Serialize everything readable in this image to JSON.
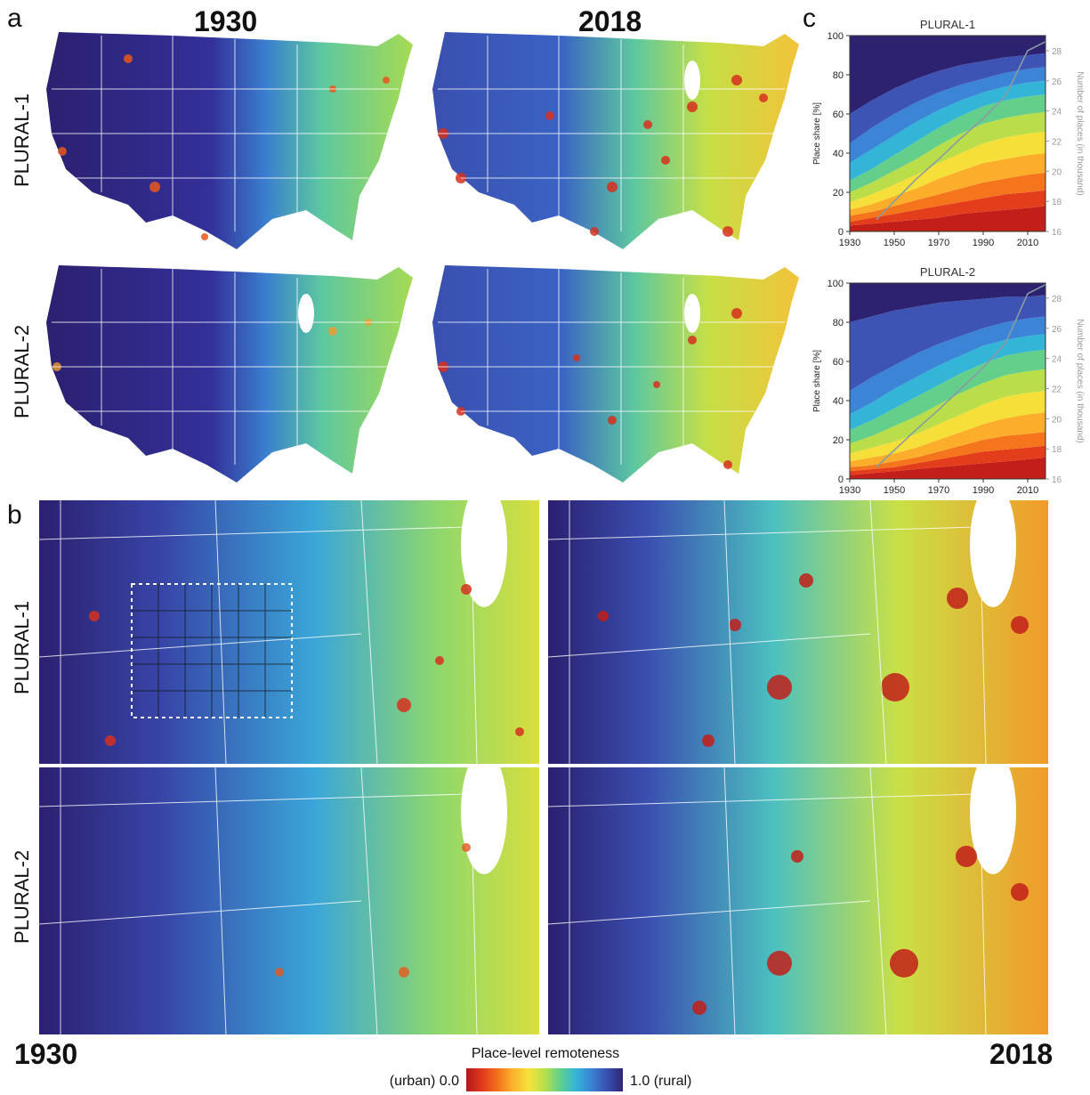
{
  "panel_labels": {
    "a": "a",
    "b": "b",
    "c": "c"
  },
  "map_headers": {
    "left_year": "1930",
    "right_year": "2018"
  },
  "row_labels": {
    "a_top": "PLURAL-1",
    "a_bottom": "PLURAL-2",
    "b_top": "PLURAL-1",
    "b_bottom": "PLURAL-2"
  },
  "bottom_years": {
    "left": "1930",
    "right": "2018"
  },
  "colorbar": {
    "title": "Place-level remoteness",
    "left_label": "(urban) 0.0",
    "right_label": "1.0 (rural)",
    "colors": [
      "#b2181b",
      "#e2391c",
      "#f2711c",
      "#fbb42d",
      "#f4e33b",
      "#b6e04a",
      "#5fd08c",
      "#33b6d8",
      "#3a82d4",
      "#3a4fb0",
      "#2e2576"
    ]
  },
  "chart_data": [
    {
      "type": "area",
      "title": "PLURAL-1",
      "ylabel": "Place share [%]",
      "y2label": "Number of places (in thousand)",
      "xlim": [
        1930,
        2018
      ],
      "ylim": [
        0,
        100
      ],
      "y2lim": [
        16,
        29
      ],
      "xticks": [
        1930,
        1950,
        1970,
        1990,
        2010
      ],
      "yticks": [
        0,
        20,
        40,
        60,
        80,
        100
      ],
      "y2ticks": [
        16,
        18,
        20,
        22,
        24,
        26,
        28
      ],
      "x": [
        1930,
        1940,
        1950,
        1960,
        1970,
        1980,
        1990,
        2000,
        2010,
        2018
      ],
      "band_colors": [
        "#c21f1a",
        "#e43d1c",
        "#f5751c",
        "#fcae2a",
        "#f6df38",
        "#b9de4a",
        "#63cf8a",
        "#33b5d8",
        "#3b84d6",
        "#3d54b5",
        "#2c2270"
      ],
      "band_boundaries": [
        [
          3,
          4,
          5,
          6,
          7,
          9,
          10,
          11,
          12,
          13
        ],
        [
          5,
          7,
          9,
          11,
          13,
          15,
          17,
          19,
          20,
          21
        ],
        [
          8,
          10,
          13,
          16,
          19,
          22,
          25,
          27,
          29,
          30
        ],
        [
          11,
          14,
          18,
          22,
          27,
          31,
          35,
          37,
          39,
          40
        ],
        [
          15,
          19,
          24,
          29,
          35,
          40,
          45,
          48,
          50,
          51
        ],
        [
          20,
          25,
          31,
          37,
          44,
          50,
          55,
          58,
          60,
          61
        ],
        [
          26,
          32,
          39,
          46,
          53,
          59,
          64,
          67,
          69,
          70
        ],
        [
          35,
          42,
          49,
          56,
          62,
          67,
          71,
          74,
          76,
          77
        ],
        [
          45,
          53,
          60,
          66,
          71,
          75,
          78,
          81,
          83,
          84
        ],
        [
          60,
          67,
          73,
          78,
          82,
          85,
          87,
          89,
          90,
          91
        ],
        [
          100,
          100,
          100,
          100,
          100,
          100,
          100,
          100,
          100,
          100
        ]
      ],
      "line_x": [
        1942,
        1950,
        1960,
        1970,
        1980,
        1990,
        2000,
        2010,
        2018
      ],
      "line_y2": [
        16.8,
        18.0,
        19.5,
        20.8,
        22.2,
        23.5,
        25.0,
        28.0,
        28.6
      ]
    },
    {
      "type": "area",
      "title": "PLURAL-2",
      "ylabel": "Place share [%]",
      "y2label": "Number of places (in thousand)",
      "xlim": [
        1930,
        2018
      ],
      "ylim": [
        0,
        100
      ],
      "y2lim": [
        16,
        29
      ],
      "xticks": [
        1930,
        1950,
        1970,
        1990,
        2010
      ],
      "yticks": [
        0,
        20,
        40,
        60,
        80,
        100
      ],
      "y2ticks": [
        16,
        18,
        20,
        22,
        24,
        26,
        28
      ],
      "x": [
        1930,
        1940,
        1950,
        1960,
        1970,
        1980,
        1990,
        2000,
        2010,
        2018
      ],
      "band_colors": [
        "#c21f1a",
        "#e43d1c",
        "#f5751c",
        "#fcae2a",
        "#f6df38",
        "#b9de4a",
        "#63cf8a",
        "#33b5d8",
        "#3b84d6",
        "#3d54b5",
        "#2c2270"
      ],
      "band_boundaries": [
        [
          2,
          3,
          4,
          5,
          6,
          7,
          8,
          9,
          10,
          11
        ],
        [
          4,
          5,
          6,
          8,
          10,
          12,
          14,
          15,
          16,
          17
        ],
        [
          6,
          7,
          9,
          11,
          14,
          17,
          20,
          22,
          23,
          24
        ],
        [
          9,
          11,
          13,
          16,
          20,
          24,
          28,
          31,
          33,
          34
        ],
        [
          13,
          16,
          19,
          23,
          28,
          33,
          38,
          42,
          44,
          45
        ],
        [
          18,
          22,
          27,
          32,
          38,
          44,
          49,
          53,
          55,
          56
        ],
        [
          25,
          30,
          36,
          42,
          48,
          54,
          59,
          63,
          65,
          66
        ],
        [
          33,
          39,
          46,
          52,
          58,
          63,
          68,
          71,
          73,
          74
        ],
        [
          45,
          52,
          58,
          64,
          69,
          73,
          77,
          80,
          82,
          83
        ],
        [
          80,
          83,
          86,
          88,
          90,
          91,
          92,
          93,
          93,
          94
        ],
        [
          100,
          100,
          100,
          100,
          100,
          100,
          100,
          100,
          100,
          100
        ]
      ],
      "line_x": [
        1942,
        1950,
        1960,
        1970,
        1980,
        1990,
        2000,
        2010,
        2018
      ],
      "line_y2": [
        16.8,
        17.9,
        19.3,
        20.6,
        22.0,
        23.4,
        25.0,
        28.3,
        28.9
      ]
    }
  ]
}
